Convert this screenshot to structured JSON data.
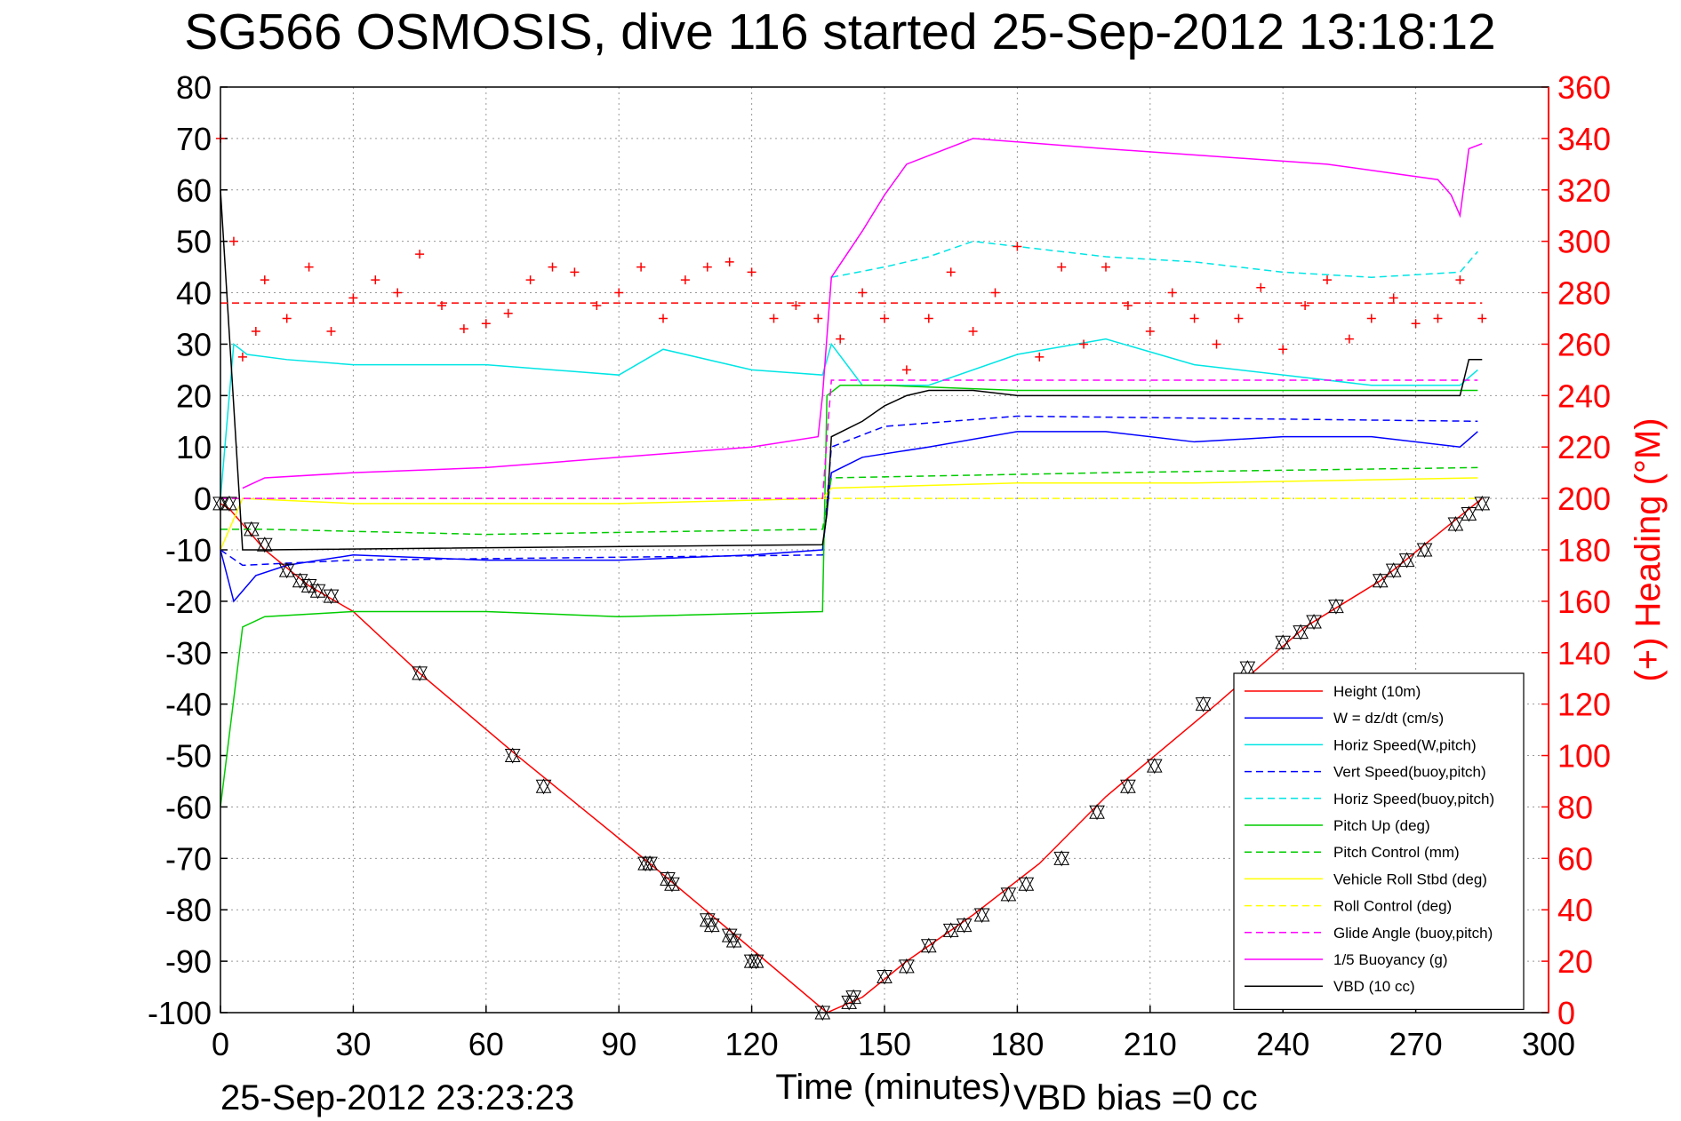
{
  "chart_data": {
    "type": "line",
    "title": "SG566 OSMOSIS, dive 116 started 25-Sep-2012 13:18:12",
    "xlabel": "Time (minutes)",
    "ylabel_right": "(+) Heading (°M)",
    "xlim": [
      0,
      300
    ],
    "ylim": [
      -100,
      80
    ],
    "ylim_right": [
      0,
      360
    ],
    "x_ticks": [
      "0",
      "30",
      "60",
      "90",
      "120",
      "150",
      "180",
      "210",
      "240",
      "270",
      "300"
    ],
    "y_ticks": [
      "80",
      "70",
      "60",
      "50",
      "40",
      "30",
      "20",
      "10",
      "0",
      "-10",
      "-20",
      "-30",
      "-40",
      "-50",
      "-60",
      "-70",
      "-80",
      "-90",
      "-100"
    ],
    "y_ticks_right": [
      "360",
      "340",
      "320",
      "300",
      "280",
      "260",
      "240",
      "220",
      "200",
      "180",
      "160",
      "140",
      "120",
      "100",
      "80",
      "60",
      "40",
      "20",
      "0"
    ],
    "grid": true,
    "legend_position": "lower-right",
    "footer_left": "25-Sep-2012 23:23:23",
    "footer_right": "VBD bias =0 cc",
    "series": [
      {
        "name": "Height (10m)",
        "color": "#ff0000",
        "style": "solid",
        "x": [
          0,
          2,
          10,
          20,
          30,
          45,
          67,
          97,
          115,
          137,
          145,
          155,
          170,
          185,
          200,
          225,
          245,
          262,
          272,
          285
        ],
        "y": [
          -1,
          -2,
          -10,
          -17,
          -22,
          -34,
          -50,
          -71,
          -84,
          -100,
          -97,
          -90,
          -81,
          -71,
          -58,
          -40,
          -25,
          -16,
          -9,
          0
        ]
      },
      {
        "name": "W = dz/dt (cm/s)",
        "color": "#0000ff",
        "style": "solid",
        "x": [
          0,
          3,
          8,
          15,
          30,
          60,
          90,
          120,
          136,
          138,
          145,
          160,
          180,
          200,
          220,
          240,
          260,
          280,
          284
        ],
        "y": [
          -10,
          -20,
          -15,
          -13,
          -11,
          -12,
          -12,
          -11,
          -10,
          5,
          8,
          10,
          13,
          13,
          11,
          12,
          12,
          10,
          13
        ]
      },
      {
        "name": "Horiz Speed(W,pitch)",
        "color": "#00e5e5",
        "style": "solid",
        "x": [
          0,
          3,
          6,
          15,
          30,
          60,
          90,
          100,
          120,
          136,
          138,
          145,
          160,
          180,
          200,
          220,
          240,
          260,
          280,
          284
        ],
        "y": [
          0,
          30,
          28,
          27,
          26,
          26,
          24,
          29,
          25,
          24,
          30,
          22,
          22,
          28,
          31,
          26,
          24,
          22,
          22,
          25
        ]
      },
      {
        "name": "Vert Speed(buoy,pitch)",
        "color": "#0000ff",
        "style": "dashed",
        "x": [
          0,
          5,
          30,
          136,
          138,
          150,
          180,
          284
        ],
        "y": [
          -10,
          -13,
          -12,
          -11,
          10,
          14,
          16,
          15
        ]
      },
      {
        "name": "Horiz Speed(buoy,pitch)",
        "color": "#00e5e5",
        "style": "dashed",
        "x": [
          138,
          150,
          160,
          170,
          180,
          200,
          220,
          240,
          260,
          280,
          284
        ],
        "y": [
          43,
          45,
          47,
          50,
          49,
          47,
          46,
          44,
          43,
          44,
          48
        ]
      },
      {
        "name": "Pitch Up (deg)",
        "color": "#00cc00",
        "style": "solid",
        "x": [
          0,
          5,
          10,
          30,
          60,
          90,
          136,
          137,
          140,
          150,
          180,
          284
        ],
        "y": [
          -60,
          -25,
          -23,
          -22,
          -22,
          -23,
          -22,
          20,
          22,
          22,
          21,
          21
        ]
      },
      {
        "name": "Pitch Control (mm)",
        "color": "#00cc00",
        "style": "dashed",
        "x": [
          0,
          10,
          60,
          136,
          138,
          200,
          284
        ],
        "y": [
          -6,
          -6,
          -7,
          -6,
          4,
          5,
          6
        ]
      },
      {
        "name": "Vehicle Roll Stbd (deg)",
        "color": "#ffff00",
        "style": "solid",
        "x": [
          0,
          5,
          30,
          60,
          90,
          136,
          138,
          180,
          220,
          284
        ],
        "y": [
          -10,
          0,
          -1,
          -1,
          -1,
          0,
          2,
          3,
          3,
          4
        ]
      },
      {
        "name": "Roll Control (deg)",
        "color": "#ffff00",
        "style": "dashed",
        "x": [
          0,
          284
        ],
        "y": [
          0,
          0
        ]
      },
      {
        "name": "Glide Angle (buoy,pitch)",
        "color": "#ff00ff",
        "style": "dashed",
        "x": [
          0,
          136,
          138,
          284
        ],
        "y": [
          0,
          0,
          23,
          23
        ]
      },
      {
        "name": "1/5 Buoyancy (g)",
        "color": "#ff00ff",
        "style": "solid",
        "x": [
          5,
          10,
          30,
          60,
          90,
          120,
          135,
          136,
          138,
          145,
          150,
          155,
          170,
          200,
          250,
          275,
          278,
          280,
          282,
          285
        ],
        "y": [
          2,
          4,
          5,
          6,
          8,
          10,
          12,
          20,
          43,
          52,
          59,
          65,
          70,
          68,
          65,
          62,
          59,
          55,
          68,
          69
        ]
      },
      {
        "name": "VBD (10 cc)",
        "color": "#000000",
        "style": "solid",
        "x": [
          0,
          5,
          10,
          136,
          137,
          138,
          145,
          150,
          155,
          160,
          170,
          180,
          280,
          282,
          285
        ],
        "y": [
          60,
          -10,
          -10,
          -9,
          -3,
          12,
          15,
          18,
          20,
          21,
          21,
          20,
          20,
          27,
          27
        ]
      }
    ],
    "heading_series": {
      "name": "(+) Heading",
      "color": "#ff0000",
      "marker": "+",
      "reference_line_deg": 276,
      "x": [
        0,
        3,
        5,
        8,
        10,
        15,
        20,
        25,
        30,
        35,
        40,
        45,
        50,
        55,
        60,
        65,
        70,
        75,
        80,
        85,
        90,
        95,
        100,
        105,
        110,
        115,
        120,
        125,
        130,
        135,
        140,
        145,
        150,
        155,
        160,
        165,
        170,
        175,
        180,
        185,
        190,
        195,
        200,
        205,
        210,
        215,
        220,
        225,
        230,
        235,
        240,
        245,
        250,
        255,
        260,
        265,
        270,
        275,
        280,
        285
      ],
      "y": [
        340,
        300,
        255,
        265,
        285,
        270,
        290,
        265,
        278,
        285,
        280,
        295,
        275,
        266,
        268,
        272,
        285,
        290,
        288,
        275,
        280,
        290,
        270,
        285,
        290,
        292,
        288,
        270,
        275,
        270,
        262,
        280,
        270,
        250,
        270,
        288,
        265,
        280,
        298,
        255,
        290,
        260,
        290,
        275,
        265,
        280,
        270,
        260,
        270,
        282,
        258,
        275,
        285,
        262,
        270,
        278,
        268,
        270,
        285,
        270
      ]
    },
    "markers": {
      "x": [
        0,
        2,
        7,
        10,
        15,
        18,
        20,
        22,
        25,
        45,
        66,
        73,
        96,
        97,
        101,
        102,
        110,
        111,
        115,
        116,
        120,
        121,
        136,
        142,
        143,
        150,
        155,
        160,
        165,
        168,
        172,
        178,
        182,
        190,
        198,
        205,
        211,
        222,
        232,
        240,
        244,
        247,
        252,
        262,
        265,
        268,
        272,
        279,
        282,
        285
      ],
      "y": [
        -1,
        -1,
        -6,
        -9,
        -14,
        -16,
        -17,
        -18,
        -19,
        -34,
        -50,
        -56,
        -71,
        -71,
        -74,
        -75,
        -82,
        -83,
        -85,
        -86,
        -90,
        -90,
        -100,
        -98,
        -97,
        -93,
        -91,
        -87,
        -84,
        -83,
        -81,
        -77,
        -75,
        -70,
        -61,
        -56,
        -52,
        -40,
        -33,
        -28,
        -26,
        -24,
        -21,
        -16,
        -14,
        -12,
        -10,
        -5,
        -3,
        -1
      ]
    }
  }
}
